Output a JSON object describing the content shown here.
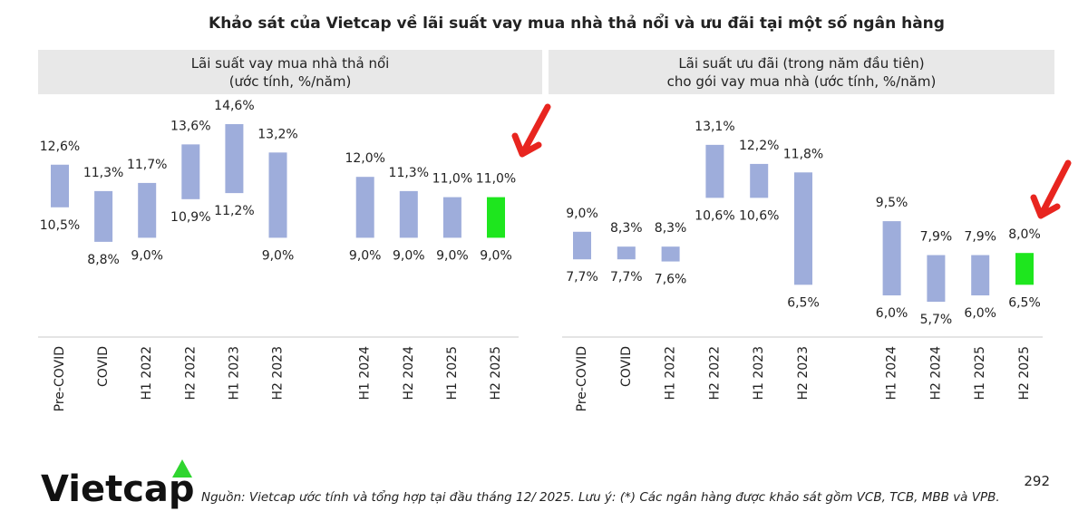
{
  "title": "Khảo sát của Vietcap về lãi suất vay mua nhà thả nổi và ưu đãi tại một số ngân hàng",
  "chart_data": [
    {
      "type": "range",
      "subtitle": [
        "Lãi suất vay mua nhà thả nổi",
        "(ước tính, %/năm)"
      ],
      "categories": [
        "Pre-COVID",
        "COVID",
        "H1 2022",
        "H2 2022",
        "H1 2023",
        "H2 2023",
        null,
        "H1 2024",
        "H2 2024",
        "H1 2025",
        "H2 2025"
      ],
      "colors": [
        "#9eaddb",
        "#9eaddb",
        "#9eaddb",
        "#9eaddb",
        "#9eaddb",
        "#9eaddb",
        null,
        "#9eaddb",
        "#9eaddb",
        "#9eaddb",
        "#1ee61e"
      ],
      "series": [
        {
          "values": [
            12.6,
            11.3,
            11.7,
            13.6,
            14.6,
            13.2,
            null,
            12.0,
            11.3,
            11.0,
            11.0
          ],
          "value_labels": [
            "12,6%",
            "11,3%",
            "11,7%",
            "13,6%",
            "14,6%",
            "13,2%",
            null,
            "12,0%",
            "11,3%",
            "11,0%",
            "11,0%"
          ]
        },
        {
          "values": [
            10.5,
            8.8,
            9.0,
            10.9,
            11.2,
            9.0,
            null,
            9.0,
            9.0,
            9.0,
            9.0
          ],
          "value_labels": [
            "10,5%",
            "8,8%",
            "9,0%",
            "10,9%",
            "11,2%",
            "9,0%",
            null,
            "9,0%",
            "9,0%",
            "9,0%",
            "9,0%"
          ]
        }
      ]
    },
    {
      "type": "range",
      "subtitle": [
        "Lãi suất ưu đãi (trong năm đầu tiên)",
        "cho gói vay mua nhà (ước tính, %/năm)"
      ],
      "categories": [
        "Pre-COVID",
        "COVID",
        "H1 2022",
        "H2 2022",
        "H1 2023",
        "H2 2023",
        null,
        "H1 2024",
        "H2 2024",
        "H1 2025",
        "H2 2025"
      ],
      "colors": [
        "#9eaddb",
        "#9eaddb",
        "#9eaddb",
        "#9eaddb",
        "#9eaddb",
        "#9eaddb",
        null,
        "#9eaddb",
        "#9eaddb",
        "#9eaddb",
        "#1ee61e"
      ],
      "series": [
        {
          "values": [
            9.0,
            8.3,
            8.3,
            13.1,
            12.2,
            11.8,
            null,
            9.5,
            7.9,
            7.9,
            8.0
          ],
          "value_labels": [
            "9,0%",
            "8,3%",
            "8,3%",
            "13,1%",
            "12,2%",
            "11,8%",
            null,
            "9,5%",
            "7,9%",
            "7,9%",
            "8,0%"
          ]
        },
        {
          "values": [
            7.7,
            7.7,
            7.6,
            10.6,
            10.6,
            6.5,
            null,
            6.0,
            5.7,
            6.0,
            6.5
          ],
          "value_labels": [
            "7,7%",
            "7,7%",
            "7,6%",
            "10,6%",
            "10,6%",
            "6,5%",
            null,
            "6,0%",
            "5,7%",
            "6,0%",
            "6,5%"
          ]
        }
      ]
    }
  ],
  "footer": {
    "logo": "Vietcap",
    "source": "Nguồn: Vietcap ước tính và tổng hợp tại đầu tháng 12/ 2025. Lưu ý: (*) Các ngân hàng được khảo sát gồm VCB, TCB, MBB và VPB.",
    "page": "292"
  }
}
